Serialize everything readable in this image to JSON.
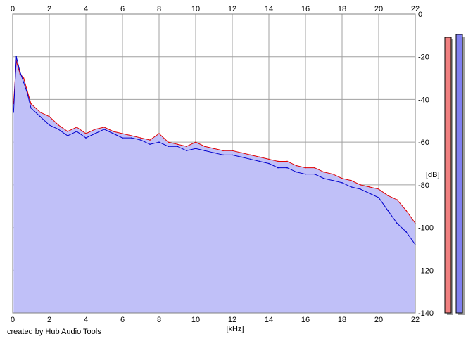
{
  "chart_data": {
    "type": "area",
    "xlabel": "[kHz]",
    "ylabel": "[dB]",
    "xlim": [
      0,
      22
    ],
    "ylim": [
      -140,
      0
    ],
    "x_ticks": [
      0,
      2,
      4,
      6,
      8,
      10,
      12,
      14,
      16,
      18,
      20,
      22
    ],
    "y_ticks": [
      0,
      -20,
      -40,
      -60,
      -80,
      -100,
      -120,
      -140
    ],
    "grid": true,
    "fill_color": "#c0c0f8",
    "series": [
      {
        "color": "#e00000",
        "x": [
          0.05,
          0.2,
          0.4,
          0.6,
          0.8,
          1,
          1.5,
          2,
          2.5,
          3,
          3.5,
          4,
          4.5,
          5,
          5.5,
          6,
          6.5,
          7,
          7.5,
          8,
          8.5,
          9,
          9.5,
          10,
          10.5,
          11,
          11.5,
          12,
          12.5,
          13,
          13.5,
          14,
          14.5,
          15,
          15.5,
          16,
          16.5,
          17,
          17.5,
          18,
          18.5,
          19,
          19.5,
          20,
          20.5,
          21,
          21.5,
          22
        ],
        "values": [
          -42,
          -22,
          -28,
          -30,
          -36,
          -42,
          -46,
          -48,
          -52,
          -55,
          -53,
          -56,
          -54,
          -53,
          -55,
          -56,
          -57,
          -58,
          -59,
          -56,
          -60,
          -61,
          -62,
          -60,
          -62,
          -63,
          -64,
          -64,
          -65,
          -66,
          -67,
          -68,
          -69,
          -69,
          -71,
          -72,
          -72,
          -74,
          -75,
          -77,
          -78,
          -80,
          -81,
          -82,
          -85,
          -87,
          -92,
          -98
        ]
      },
      {
        "color": "#0000cc",
        "x": [
          0.05,
          0.2,
          0.4,
          0.6,
          0.8,
          1,
          1.5,
          2,
          2.5,
          3,
          3.5,
          4,
          4.5,
          5,
          5.5,
          6,
          6.5,
          7,
          7.5,
          8,
          8.5,
          9,
          9.5,
          10,
          10.5,
          11,
          11.5,
          12,
          12.5,
          13,
          13.5,
          14,
          14.5,
          15,
          15.5,
          16,
          16.5,
          17,
          17.5,
          18,
          18.5,
          19,
          19.5,
          20,
          20.5,
          21,
          21.5,
          22
        ],
        "values": [
          -46,
          -20,
          -27,
          -32,
          -37,
          -44,
          -48,
          -52,
          -54,
          -57,
          -55,
          -58,
          -56,
          -54,
          -56,
          -58,
          -58,
          -59,
          -61,
          -60,
          -62,
          -62,
          -64,
          -63,
          -64,
          -65,
          -66,
          -66,
          -67,
          -68,
          -69,
          -70,
          -72,
          -72,
          -74,
          -75,
          -75,
          -77,
          -78,
          -79,
          -81,
          -82,
          -84,
          -86,
          -92,
          -98,
          -102,
          -108
        ]
      }
    ],
    "level_meters": [
      {
        "color": "#f08080",
        "level": 0.98
      },
      {
        "color": "#8080f0",
        "level": 0.99
      }
    ]
  },
  "footer": {
    "credit": "created by Hub Audio Tools"
  }
}
